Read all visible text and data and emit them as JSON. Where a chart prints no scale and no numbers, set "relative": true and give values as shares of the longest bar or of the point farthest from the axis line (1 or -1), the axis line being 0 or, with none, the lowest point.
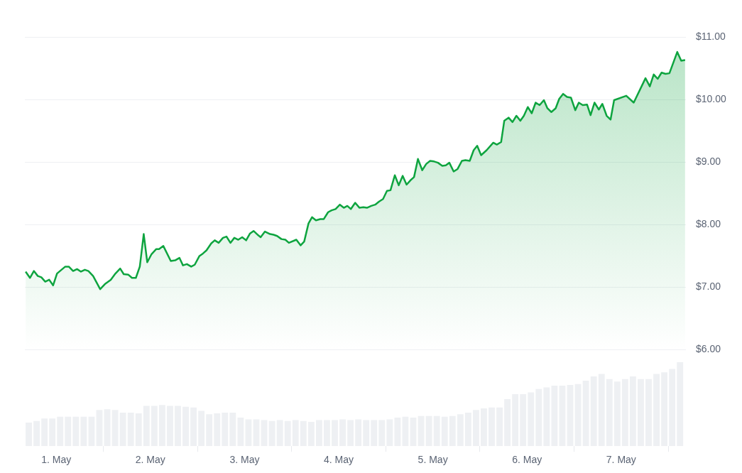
{
  "chart_data": [
    {
      "type": "area",
      "color": "#0ea43f",
      "grid": "y",
      "tick_labels": "y",
      "xlim": [
        "--04-30T16:00",
        "--05-07T16:30"
      ],
      "ylim": [
        6,
        11
      ],
      "yticks": [
        {
          "value": 6,
          "label": "$6.00"
        },
        {
          "value": 7,
          "label": "$7.00"
        },
        {
          "value": 8,
          "label": "$8.00"
        },
        {
          "value": 9,
          "label": "$9.00"
        },
        {
          "value": 10,
          "label": "$10.00"
        },
        {
          "value": 11,
          "label": "$11.00"
        }
      ],
      "x": [
        "--04-30T16:12",
        "--04-30T17:18",
        "--04-30T18:18",
        "--04-30T19:18",
        "--04-30T20:12",
        "--04-30T21:12",
        "--04-30T22:12",
        "--04-30T23:12",
        "--05-01T00:12",
        "--05-01T02:18",
        "--05-01T03:12",
        "--05-01T04:18",
        "--05-01T05:18",
        "--05-01T06:18",
        "--05-01T07:18",
        "--05-01T08:12",
        "--05-01T09:24",
        "--05-01T11:12",
        "--05-01T12:24",
        "--05-01T13:54",
        "--05-01T15:06",
        "--05-01T16:18",
        "--05-01T17:12",
        "--05-01T18:24",
        "--05-01T19:18",
        "--05-01T20:18",
        "--05-01T21:18",
        "--05-01T22:18",
        "--05-01T23:12",
        "--05-02T00:18",
        "--05-02T01:30",
        "--05-02T02:12",
        "--05-02T03:18",
        "--05-02T05:12",
        "--05-02T06:18",
        "--05-02T07:24",
        "--05-02T08:18",
        "--05-02T09:18",
        "--05-02T10:24",
        "--05-02T11:18",
        "--05-02T12:30",
        "--05-02T13:24",
        "--05-02T14:18",
        "--05-02T15:30",
        "--05-02T16:24",
        "--05-02T17:24",
        "--05-02T18:30",
        "--05-02T19:24",
        "--05-02T20:24",
        "--05-02T21:24",
        "--05-02T22:24",
        "--05-02T23:24",
        "--05-03T00:24",
        "--05-03T01:24",
        "--05-03T02:18",
        "--05-03T03:30",
        "--05-03T04:06",
        "--05-03T05:12",
        "--05-03T06:30",
        "--05-03T07:24",
        "--05-03T08:18",
        "--05-03T09:24",
        "--05-03T10:24",
        "--05-03T11:18",
        "--05-03T13:12",
        "--05-03T14:18",
        "--05-03T15:12",
        "--05-03T16:18",
        "--05-03T17:12",
        "--05-03T18:12",
        "--05-03T19:18",
        "--05-03T20:12",
        "--05-03T21:18",
        "--05-03T22:12",
        "--05-03T23:12",
        "--05-04T00:18",
        "--05-04T01:18",
        "--05-04T02:12",
        "--05-04T03:06",
        "--05-04T04:12",
        "--05-04T05:18",
        "--05-04T06:18",
        "--05-04T07:12",
        "--05-04T08:18",
        "--05-04T09:18",
        "--05-04T10:18",
        "--05-04T11:18",
        "--05-04T12:18",
        "--05-04T13:12",
        "--05-04T14:18",
        "--05-04T15:18",
        "--05-04T16:18",
        "--05-04T17:18",
        "--05-04T18:18",
        "--05-04T19:12",
        "--05-04T20:12",
        "--05-04T21:18",
        "--05-04T22:18",
        "--05-04T23:18",
        "--05-05T00:18",
        "--05-05T01:18",
        "--05-05T02:24",
        "--05-05T03:18",
        "--05-05T04:12",
        "--05-05T05:18",
        "--05-05T06:18",
        "--05-05T07:24",
        "--05-05T08:18",
        "--05-05T09:24",
        "--05-05T10:24",
        "--05-05T11:18",
        "--05-05T12:18",
        "--05-05T13:42",
        "--05-05T15:24",
        "--05-05T16:18",
        "--05-05T17:24",
        "--05-05T18:12",
        "--05-05T19:18",
        "--05-05T20:18",
        "--05-05T21:18",
        "--05-05T22:18",
        "--05-05T23:12",
        "--05-06T00:12",
        "--05-06T01:12",
        "--05-06T02:12",
        "--05-06T03:12",
        "--05-06T04:18",
        "--05-06T05:12",
        "--05-06T06:12",
        "--05-06T07:18",
        "--05-06T08:12",
        "--05-06T09:12",
        "--05-06T10:12",
        "--05-06T11:12",
        "--05-06T12:18",
        "--05-06T13:12",
        "--05-06T14:12",
        "--05-06T15:18",
        "--05-06T16:12",
        "--05-06T17:12",
        "--05-06T18:18",
        "--05-06T19:12",
        "--05-06T20:18",
        "--05-06T21:18",
        "--05-06T22:12",
        "--05-07T01:18",
        "--05-07T03:12",
        "--05-07T06:12",
        "--05-07T07:18",
        "--05-07T08:18",
        "--05-07T09:18",
        "--05-07T10:18",
        "--05-07T11:18",
        "--05-07T12:18",
        "--05-07T14:18",
        "--05-07T15:18",
        "--05-07T16:18"
      ],
      "values": [
        7.25,
        7.15,
        7.26,
        7.18,
        7.16,
        7.09,
        7.12,
        7.03,
        7.22,
        7.33,
        7.33,
        7.26,
        7.29,
        7.25,
        7.28,
        7.26,
        7.18,
        6.97,
        7.05,
        7.12,
        7.22,
        7.3,
        7.21,
        7.2,
        7.15,
        7.15,
        7.33,
        7.85,
        7.4,
        7.53,
        7.61,
        7.61,
        7.66,
        7.42,
        7.43,
        7.47,
        7.35,
        7.37,
        7.33,
        7.36,
        7.5,
        7.54,
        7.59,
        7.7,
        7.75,
        7.71,
        7.79,
        7.81,
        7.71,
        7.79,
        7.76,
        7.8,
        7.75,
        7.86,
        7.9,
        7.83,
        7.8,
        7.89,
        7.85,
        7.84,
        7.82,
        7.77,
        7.76,
        7.71,
        7.76,
        7.67,
        7.73,
        8.02,
        8.12,
        8.07,
        8.09,
        8.09,
        8.2,
        8.23,
        8.25,
        8.32,
        8.27,
        8.3,
        8.25,
        8.35,
        8.27,
        8.28,
        8.27,
        8.3,
        8.32,
        8.37,
        8.41,
        8.54,
        8.55,
        8.79,
        8.63,
        8.78,
        8.64,
        8.71,
        8.76,
        9.05,
        8.87,
        8.97,
        9.02,
        9.01,
        8.99,
        8.94,
        8.95,
        8.99,
        8.85,
        8.89,
        9.02,
        9.03,
        9.02,
        9.19,
        9.26,
        9.11,
        9.19,
        9.31,
        9.28,
        9.32,
        9.66,
        9.71,
        9.64,
        9.74,
        9.66,
        9.74,
        9.88,
        9.78,
        9.95,
        9.91,
        9.99,
        9.86,
        9.8,
        9.86,
        10.01,
        10.09,
        10.04,
        10.03,
        9.83,
        9.95,
        9.91,
        9.92,
        9.75,
        9.95,
        9.84,
        9.93,
        9.74,
        9.68,
        9.99,
        10.06,
        9.95,
        10.34,
        10.21,
        10.4,
        10.33,
        10.43,
        10.41,
        10.42,
        10.76,
        10.62,
        10.63
      ]
    },
    {
      "type": "bar",
      "color": "#eef0f3",
      "relative": true,
      "xlim": [
        "--04-30T16:00",
        "--05-07T16:30"
      ],
      "xticks": [
        {
          "value": "--05-01",
          "label": "1. May"
        },
        {
          "value": "--05-02",
          "label": "2. May"
        },
        {
          "value": "--05-03",
          "label": "3. May"
        },
        {
          "value": "--05-04",
          "label": "4. May"
        },
        {
          "value": "--05-05",
          "label": "5. May"
        },
        {
          "value": "--05-06",
          "label": "6. May"
        },
        {
          "value": "--05-07",
          "label": "7. May"
        }
      ],
      "x": [
        "--04-30T17:00",
        "--04-30T19:00",
        "--04-30T21:00",
        "--04-30T23:00",
        "--05-01T01:00",
        "--05-01T03:00",
        "--05-01T05:00",
        "--05-01T07:00",
        "--05-01T09:00",
        "--05-01T11:00",
        "--05-01T13:00",
        "--05-01T15:00",
        "--05-01T17:00",
        "--05-01T19:00",
        "--05-01T21:00",
        "--05-01T23:00",
        "--05-02T01:00",
        "--05-02T03:00",
        "--05-02T05:00",
        "--05-02T07:00",
        "--05-02T09:00",
        "--05-02T11:00",
        "--05-02T13:00",
        "--05-02T15:00",
        "--05-02T17:00",
        "--05-02T19:00",
        "--05-02T21:00",
        "--05-02T23:00",
        "--05-03T01:00",
        "--05-03T03:00",
        "--05-03T05:00",
        "--05-03T07:00",
        "--05-03T09:00",
        "--05-03T11:00",
        "--05-03T13:00",
        "--05-03T15:00",
        "--05-03T17:00",
        "--05-03T19:00",
        "--05-03T21:00",
        "--05-03T23:00",
        "--05-04T01:00",
        "--05-04T03:00",
        "--05-04T05:00",
        "--05-04T07:00",
        "--05-04T09:00",
        "--05-04T11:00",
        "--05-04T13:00",
        "--05-04T15:00",
        "--05-04T17:00",
        "--05-04T19:00",
        "--05-04T21:00",
        "--05-04T23:00",
        "--05-05T01:00",
        "--05-05T03:00",
        "--05-05T05:00",
        "--05-05T07:00",
        "--05-05T09:00",
        "--05-05T11:00",
        "--05-05T13:00",
        "--05-05T15:00",
        "--05-05T17:00",
        "--05-05T19:00",
        "--05-05T21:00",
        "--05-05T23:00",
        "--05-06T01:00",
        "--05-06T03:00",
        "--05-06T05:00",
        "--05-06T07:00",
        "--05-06T09:00",
        "--05-06T11:00",
        "--05-06T13:00",
        "--05-06T15:00",
        "--05-06T17:00",
        "--05-06T19:00",
        "--05-06T21:00",
        "--05-06T23:00",
        "--05-07T01:00",
        "--05-07T03:00",
        "--05-07T05:00",
        "--05-07T07:00",
        "--05-07T09:00",
        "--05-07T11:00",
        "--05-07T13:00",
        "--05-07T15:00"
      ],
      "values": [
        0.28,
        0.3,
        0.33,
        0.33,
        0.35,
        0.35,
        0.35,
        0.35,
        0.35,
        0.43,
        0.44,
        0.43,
        0.4,
        0.4,
        0.39,
        0.48,
        0.48,
        0.49,
        0.48,
        0.48,
        0.47,
        0.46,
        0.42,
        0.38,
        0.39,
        0.4,
        0.4,
        0.34,
        0.32,
        0.32,
        0.31,
        0.3,
        0.31,
        0.3,
        0.31,
        0.3,
        0.29,
        0.31,
        0.31,
        0.31,
        0.32,
        0.31,
        0.32,
        0.31,
        0.31,
        0.31,
        0.32,
        0.34,
        0.35,
        0.34,
        0.36,
        0.36,
        0.36,
        0.35,
        0.36,
        0.38,
        0.4,
        0.43,
        0.45,
        0.46,
        0.46,
        0.56,
        0.62,
        0.62,
        0.64,
        0.68,
        0.7,
        0.72,
        0.72,
        0.73,
        0.74,
        0.78,
        0.83,
        0.86,
        0.8,
        0.77,
        0.8,
        0.83,
        0.8,
        0.8,
        0.86,
        0.88,
        0.92,
        1
      ]
    }
  ]
}
